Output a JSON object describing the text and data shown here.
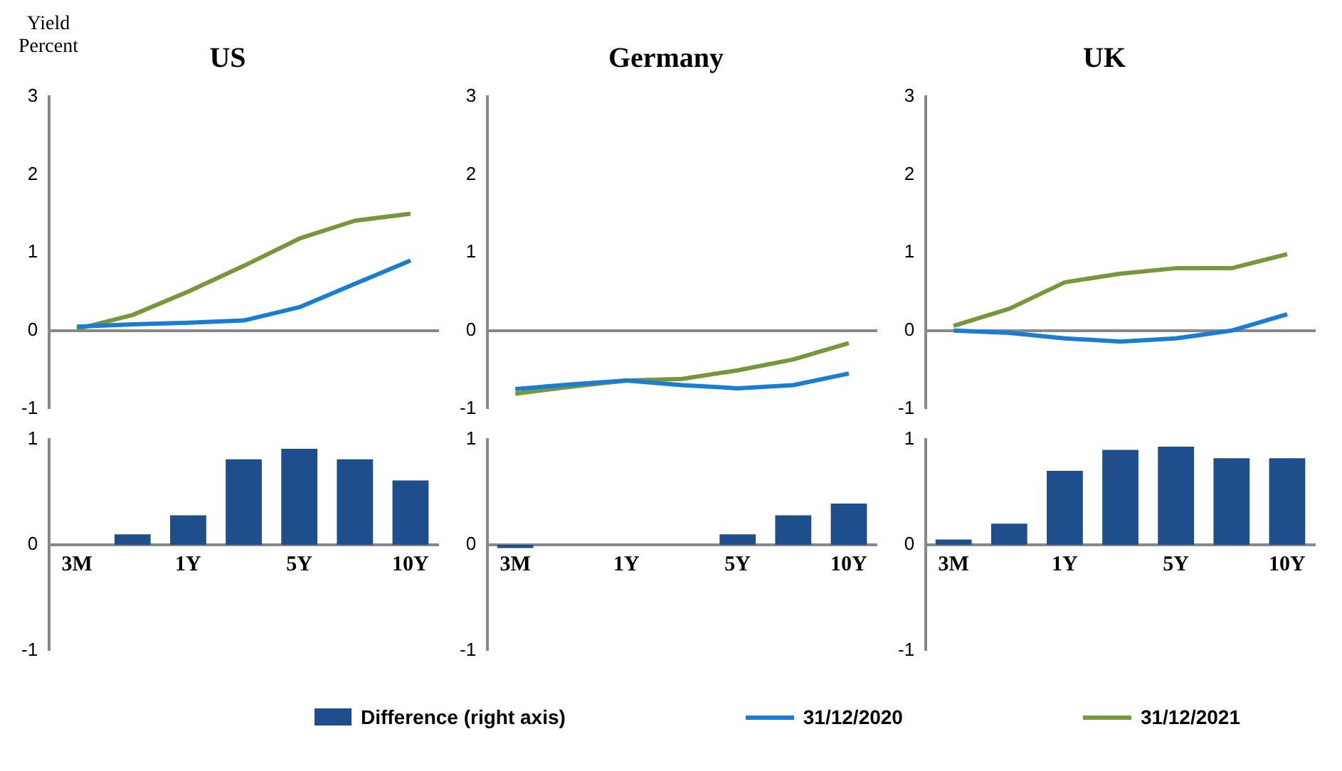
{
  "chart_data": [
    {
      "type": "line",
      "title": "US",
      "ylabel": "Yield Percent",
      "categories": [
        null,
        null,
        null,
        null,
        null,
        null,
        null
      ],
      "ylim": [
        -1,
        3
      ],
      "yticks": [
        -1,
        0,
        1,
        2,
        3
      ],
      "tick_labels": "y",
      "legend": "bottom",
      "series": [
        {
          "name": "31/12/2020",
          "color": "#1a7dd4",
          "values": [
            0.05,
            0.08,
            0.1,
            0.13,
            0.3,
            0.6,
            0.9
          ]
        },
        {
          "name": "31/12/2021",
          "color": "#77973a",
          "values": [
            0.02,
            0.2,
            0.5,
            0.83,
            1.18,
            1.41,
            1.5
          ]
        }
      ]
    },
    {
      "type": "line",
      "title": "Germany",
      "categories": [
        null,
        null,
        null,
        null,
        null,
        null,
        null
      ],
      "ylim": [
        -1,
        3
      ],
      "yticks": [
        -1,
        0,
        1,
        2,
        3
      ],
      "tick_labels": "y",
      "series": [
        {
          "color": "#1a7dd4",
          "values": [
            -0.75,
            -0.69,
            -0.64,
            -0.7,
            -0.74,
            -0.7,
            -0.55
          ]
        },
        {
          "color": "#77973a",
          "values": [
            -0.81,
            -0.72,
            -0.64,
            -0.62,
            -0.51,
            -0.37,
            -0.16
          ]
        }
      ]
    },
    {
      "type": "line",
      "title": "UK",
      "categories": [
        null,
        null,
        null,
        null,
        null,
        null,
        null
      ],
      "ylim": [
        -1,
        3
      ],
      "yticks": [
        -1,
        0,
        1,
        2,
        3
      ],
      "tick_labels": "y",
      "series": [
        {
          "color": "#1a7dd4",
          "values": [
            0,
            -0.03,
            -0.1,
            -0.14,
            -0.1,
            0,
            0.21
          ]
        },
        {
          "color": "#77973a",
          "values": [
            0.06,
            0.28,
            0.62,
            0.73,
            0.8,
            0.8,
            0.98
          ]
        }
      ]
    },
    {
      "type": "bar",
      "categories": [
        "3M",
        null,
        "1Y",
        null,
        "5Y",
        null,
        "10Y"
      ],
      "ylim": [
        -1,
        1
      ],
      "yticks": [
        -1,
        0,
        1
      ],
      "legend": "bottom",
      "series": [
        {
          "name": "Difference (right axis)",
          "color": "#1f4e8c",
          "values": [
            0,
            0.1,
            0.28,
            0.81,
            0.91,
            0.81,
            0.61
          ]
        }
      ]
    },
    {
      "type": "bar",
      "categories": [
        "3M",
        null,
        "1Y",
        null,
        "5Y",
        null,
        "10Y"
      ],
      "ylim": [
        -1,
        1
      ],
      "yticks": [
        -1,
        0,
        1
      ],
      "series": [
        {
          "color": "#1f4e8c",
          "values": [
            -0.03,
            0,
            0,
            0,
            0.1,
            0.28,
            0.39
          ]
        }
      ]
    },
    {
      "type": "bar",
      "categories": [
        "3M",
        null,
        "1Y",
        null,
        "5Y",
        null,
        "10Y"
      ],
      "ylim": [
        -1,
        1
      ],
      "yticks": [
        -1,
        0,
        1
      ],
      "series": [
        {
          "color": "#1f4e8c",
          "values": [
            0.05,
            0.2,
            0.7,
            0.9,
            0.93,
            0.82,
            0.82
          ]
        }
      ]
    }
  ]
}
